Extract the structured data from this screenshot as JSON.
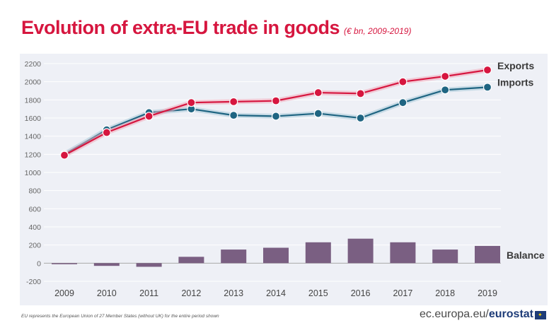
{
  "title": "Evolution of extra-EU trade in goods",
  "subtitle": "(€ bn, 2009-2019)",
  "footnote": "EU represents the European Union of 27 Member States (without UK) for the entire period shown",
  "source_prefix": "ec.europa.eu/",
  "source_brand": "eurostat",
  "colors": {
    "exports": "#d6163f",
    "imports": "#1f6582",
    "balance": "#7a5f82",
    "title": "#d6163f",
    "grid": "#ffffff",
    "axis_text": "#666666",
    "plot_background": "#eef0f6"
  },
  "chart_data": {
    "type": "line",
    "title": "Evolution of extra-EU trade in goods",
    "subtitle": "(€ bn, 2009-2019)",
    "xlabel": "",
    "ylabel": "",
    "ylim": [
      -200,
      2200
    ],
    "yticks": [
      2200,
      2000,
      1800,
      1600,
      1400,
      1200,
      1000,
      800,
      600,
      400,
      200,
      0,
      -200
    ],
    "grid": true,
    "categories": [
      "2009",
      "2010",
      "2011",
      "2012",
      "2013",
      "2014",
      "2015",
      "2016",
      "2017",
      "2018",
      "2019"
    ],
    "series": [
      {
        "name": "Exports",
        "type": "line",
        "values": [
          1190,
          1440,
          1620,
          1770,
          1780,
          1790,
          1880,
          1870,
          2000,
          2060,
          2130
        ]
      },
      {
        "name": "Imports",
        "type": "line",
        "values": [
          1200,
          1470,
          1660,
          1700,
          1630,
          1620,
          1650,
          1600,
          1770,
          1910,
          1940
        ]
      },
      {
        "name": "Balance",
        "type": "bar",
        "values": [
          -10,
          -30,
          -40,
          70,
          150,
          170,
          230,
          270,
          230,
          150,
          190
        ]
      }
    ]
  }
}
